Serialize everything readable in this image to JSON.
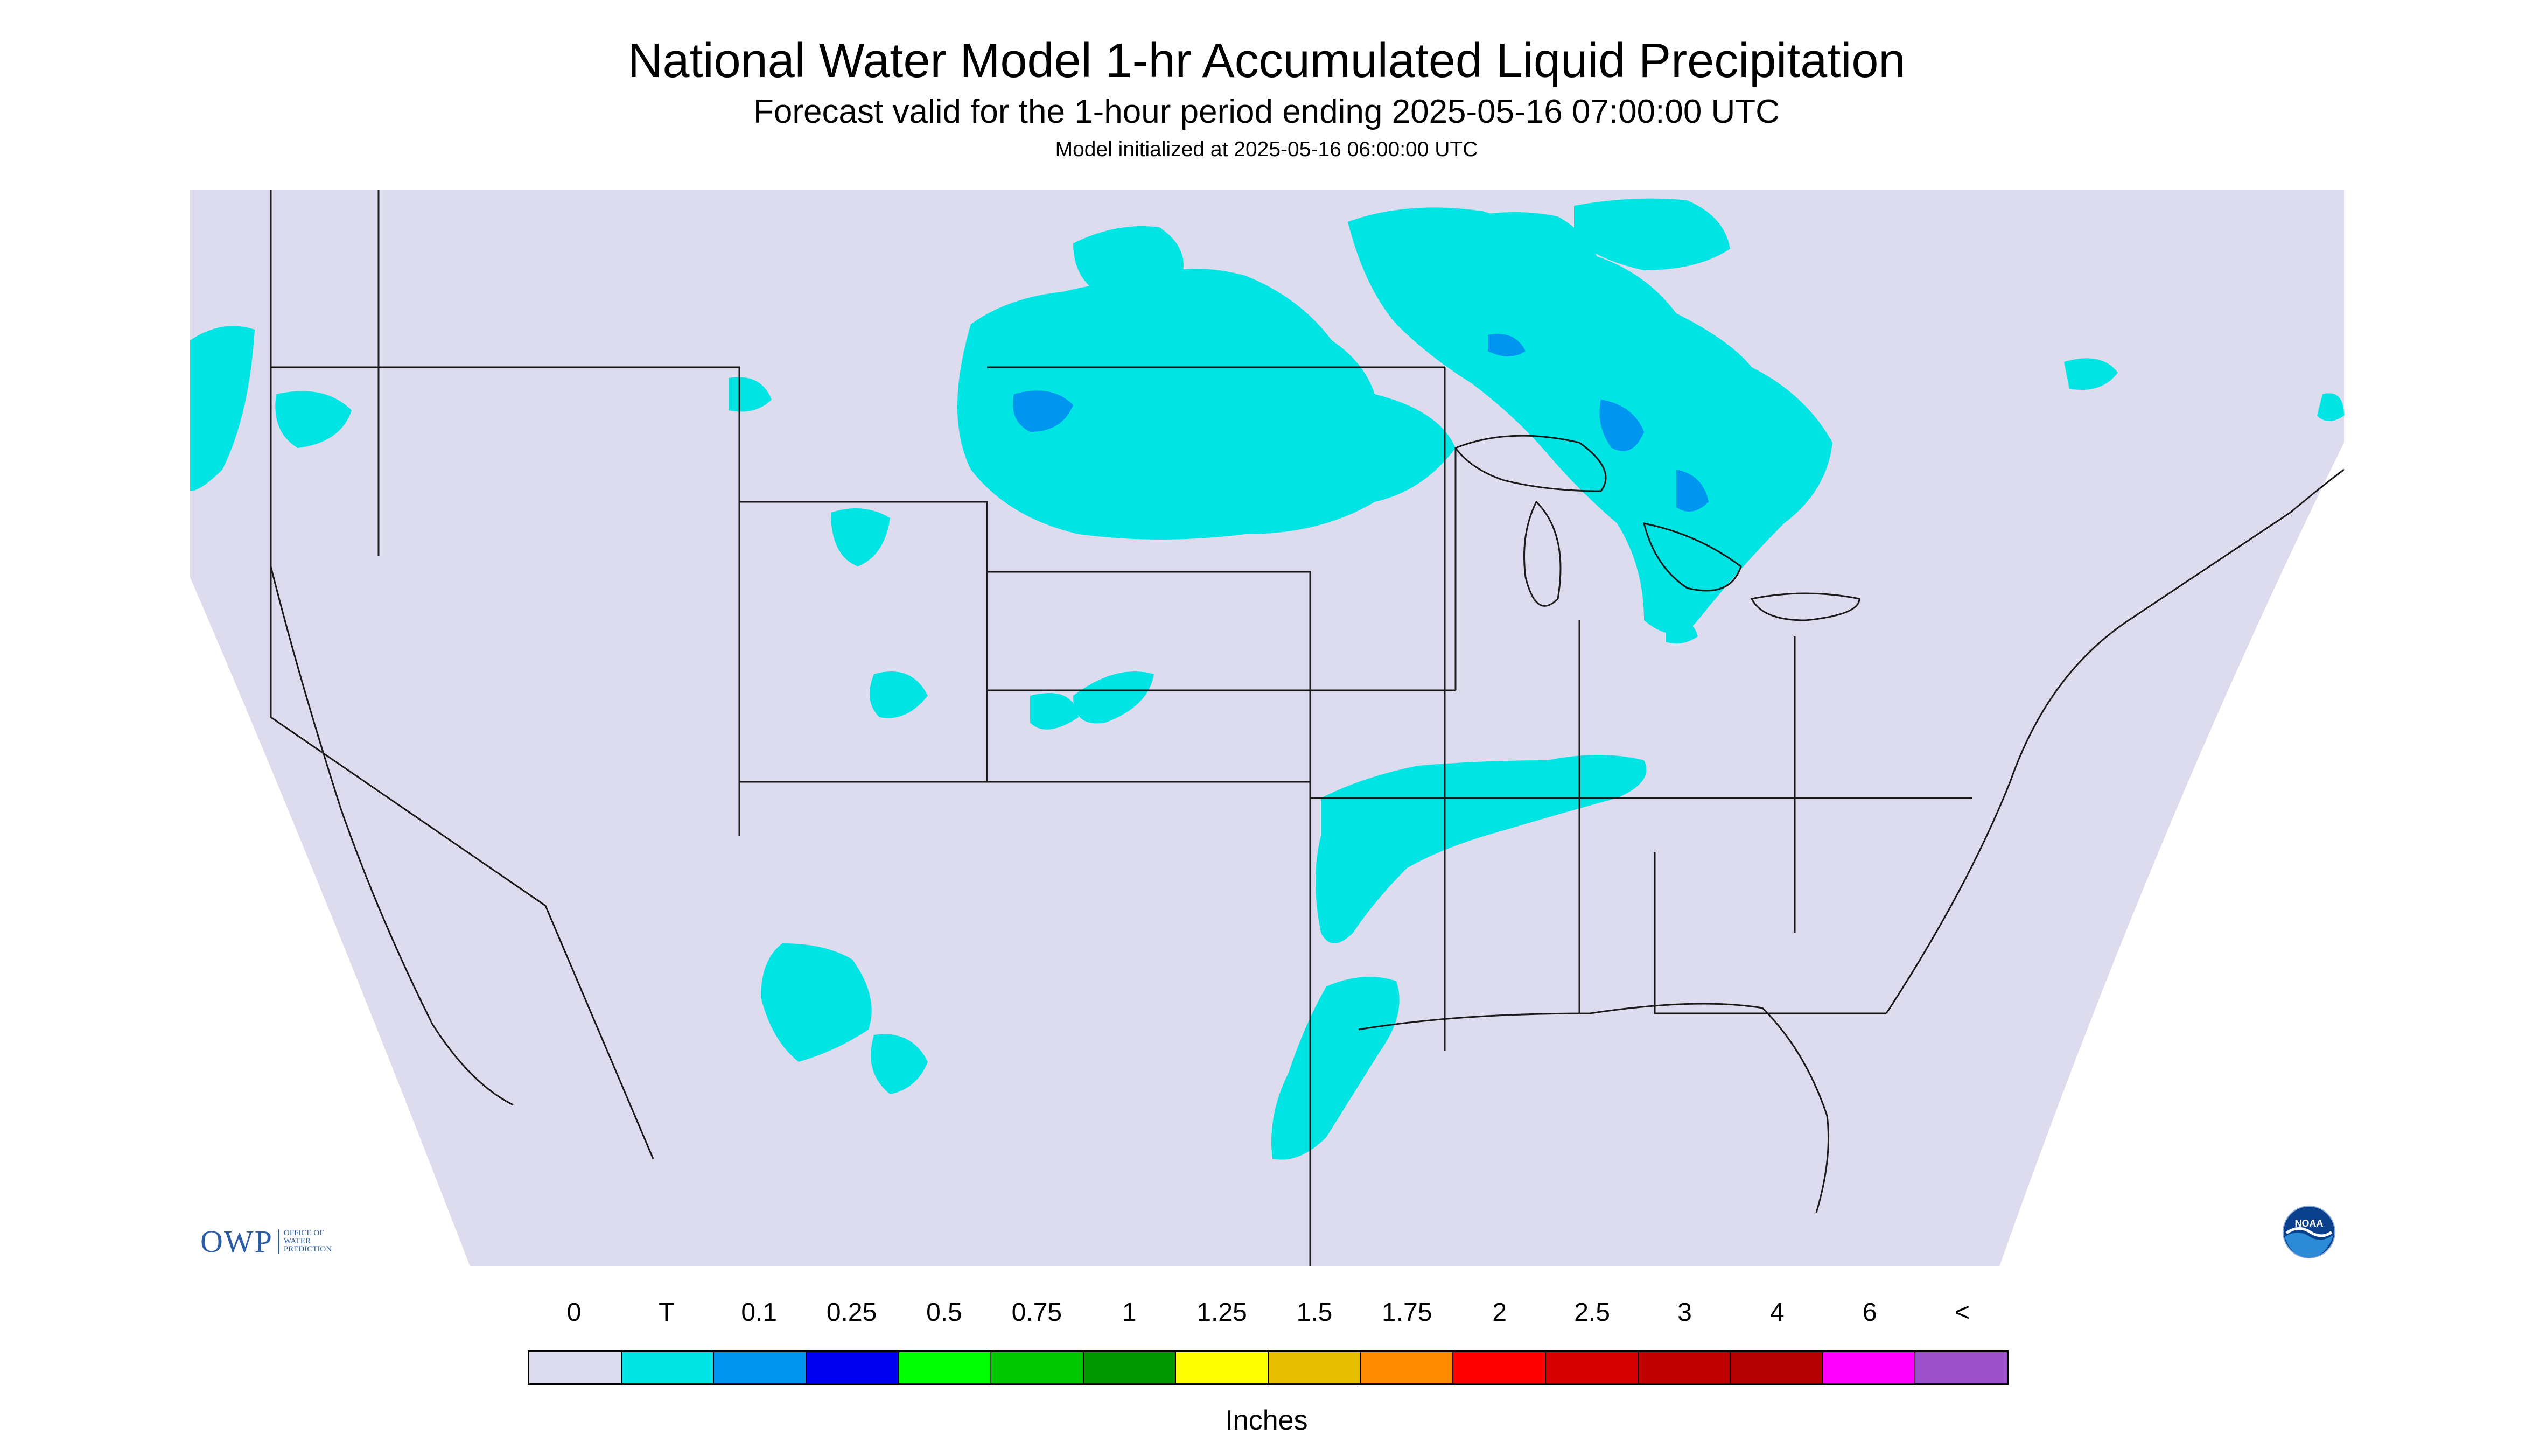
{
  "title": "National Water Model 1-hr Accumulated Liquid Precipitation",
  "subtitle": "Forecast valid for the 1-hour period ending 2025-05-16 07:00:00 UTC",
  "init_line": "Model initialized at 2025-05-16 06:00:00 UTC",
  "units": "Inches",
  "background_color": "#dcdcee",
  "precip_color": "#00e4e4",
  "legend": {
    "labels": [
      "0",
      "T",
      "0.1",
      "0.25",
      "0.5",
      "0.75",
      "1",
      "1.25",
      "1.5",
      "1.75",
      "2",
      "2.5",
      "3",
      "4",
      "6",
      "<"
    ],
    "colors": [
      "#dcdcee",
      "#00e4e4",
      "#0096f0",
      "#0000f0",
      "#00ff00",
      "#00c800",
      "#009600",
      "#ffff00",
      "#e6be00",
      "#ff8c00",
      "#ff0000",
      "#d70000",
      "#c00000",
      "#b40000",
      "#ff00ff",
      "#9a50c8"
    ]
  },
  "logos": {
    "owp_text": "OWP",
    "owp_sub": [
      "OFFICE OF",
      "WATER",
      "PREDICTION"
    ],
    "noaa_text": "NOAA"
  }
}
